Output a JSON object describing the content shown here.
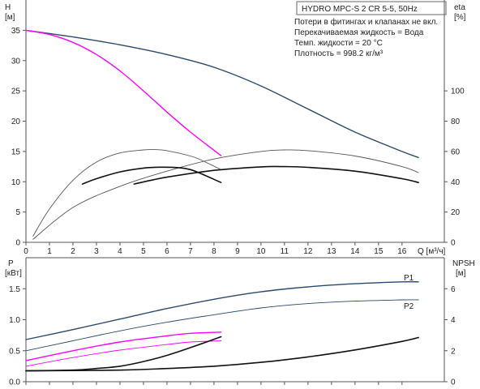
{
  "chart_data": [
    {
      "type": "line",
      "title": "HYDRO MPC-S 2 CR 5-5, 50Hz",
      "notes": [
        "Потери в фитингах и клапанах не вкл.",
        "Перекачиваемая жидкость = Вода",
        "Темп. жидкости = 20 °C",
        "Плотность = 998.2 кг/м³"
      ],
      "xlabel": "Q [м³/ч]",
      "xlim": [
        0,
        17.8
      ],
      "xticks": [
        0,
        1,
        2,
        3,
        4,
        5,
        6,
        7,
        8,
        9,
        10,
        11,
        12,
        13,
        14,
        15,
        16
      ],
      "ylabel_left": {
        "symbol": "H",
        "unit": "[м]"
      },
      "ylim_left": [
        0,
        40
      ],
      "yticks_left": [
        0,
        5,
        10,
        15,
        20,
        25,
        30,
        35
      ],
      "ylabel_right": {
        "symbol": "eta",
        "unit": "[%]"
      },
      "ylim_right": [
        0,
        160
      ],
      "yticks_right": [
        0,
        20,
        40,
        60,
        80,
        100
      ],
      "grid": false,
      "series": [
        {
          "axis": "left",
          "color": "#2a4a6e",
          "width": 1.4,
          "x": [
            0,
            2,
            4,
            6,
            8,
            10,
            12,
            14,
            16,
            16.7
          ],
          "y": [
            35,
            33.9,
            32.6,
            31,
            28.9,
            25.8,
            22,
            18.2,
            15,
            14
          ]
        },
        {
          "axis": "left",
          "color": "#ff00ff",
          "width": 1.4,
          "x": [
            0,
            1,
            2,
            3,
            4,
            5,
            6,
            7,
            8,
            8.3
          ],
          "y": [
            35,
            34.3,
            33,
            31,
            28.3,
            25,
            21.5,
            18.2,
            15.2,
            14.3
          ]
        },
        {
          "axis": "right",
          "color": "#555555",
          "width": 0.9,
          "x": [
            0.3,
            1,
            2,
            3,
            4,
            5,
            5.5,
            6,
            7,
            7.5,
            8.3
          ],
          "y": [
            4,
            22,
            41,
            53,
            59,
            61,
            61.2,
            60.5,
            57,
            54,
            48
          ]
        },
        {
          "axis": "right",
          "color": "#555555",
          "width": 0.9,
          "x": [
            0.3,
            2,
            4,
            6,
            8,
            10,
            11,
            12,
            14,
            16,
            16.7
          ],
          "y": [
            2,
            23,
            37,
            47,
            55,
            60,
            61,
            60.5,
            57,
            50,
            46
          ]
        },
        {
          "axis": "right",
          "color": "#111111",
          "width": 1.6,
          "x": [
            2.4,
            3,
            4,
            5,
            5.7,
            6.5,
            7,
            7.5,
            8.3
          ],
          "y": [
            38.5,
            42,
            46.5,
            49,
            49.6,
            49.3,
            48,
            45,
            39.5
          ]
        },
        {
          "axis": "right",
          "color": "#111111",
          "width": 1.6,
          "x": [
            4.6,
            6,
            8,
            10,
            11,
            12,
            14,
            16,
            16.7
          ],
          "y": [
            38.5,
            43,
            47.5,
            49.8,
            50,
            49.5,
            47,
            42,
            39.5
          ]
        }
      ]
    },
    {
      "type": "line",
      "xlim": [
        0,
        17.8
      ],
      "ylabel_left": {
        "symbol": "P",
        "unit": "[кВт]"
      },
      "ylim_left": [
        0,
        2
      ],
      "yticks_left": [
        "0.0",
        "0.5",
        "1.0",
        "1.5"
      ],
      "ylabel_right": {
        "symbol": "NPSH",
        "unit": "[м]"
      },
      "ylim_right": [
        0,
        8
      ],
      "yticks_right": [
        0,
        2,
        4,
        6
      ],
      "grid": false,
      "series": [
        {
          "name": "P1",
          "axis": "left",
          "color": "#2a4a6e",
          "width": 1.4,
          "x": [
            0,
            2,
            4,
            6,
            8,
            10,
            12,
            14,
            16,
            16.7
          ],
          "y": [
            0.68,
            0.84,
            1.01,
            1.18,
            1.33,
            1.45,
            1.53,
            1.58,
            1.61,
            1.61
          ]
        },
        {
          "name": "P2",
          "axis": "left",
          "color": "#2a4a6e",
          "width": 0.9,
          "x": [
            0,
            2,
            4,
            6,
            8,
            10,
            12,
            14,
            16,
            16.7
          ],
          "y": [
            0.5,
            0.66,
            0.82,
            0.96,
            1.08,
            1.19,
            1.26,
            1.3,
            1.32,
            1.32
          ]
        },
        {
          "axis": "left",
          "color": "#ff00ff",
          "width": 1.4,
          "x": [
            0,
            2,
            4,
            6,
            7,
            8.3
          ],
          "y": [
            0.34,
            0.5,
            0.64,
            0.74,
            0.78,
            0.8
          ]
        },
        {
          "axis": "left",
          "color": "#ff00ff",
          "width": 0.9,
          "x": [
            0,
            2,
            4,
            6,
            7,
            8.3
          ],
          "y": [
            0.25,
            0.39,
            0.51,
            0.6,
            0.64,
            0.66
          ]
        },
        {
          "axis": "right",
          "color": "#111111",
          "width": 1.6,
          "x": [
            0,
            2,
            3,
            4,
            5,
            6,
            7,
            8.3
          ],
          "y": [
            0.7,
            0.75,
            0.85,
            1,
            1.3,
            1.7,
            2.2,
            2.9
          ]
        },
        {
          "axis": "right",
          "color": "#111111",
          "width": 1.6,
          "x": [
            0,
            4,
            6,
            8,
            10,
            12,
            14,
            16,
            16.7
          ],
          "y": [
            0.7,
            0.75,
            0.85,
            1,
            1.25,
            1.6,
            2.05,
            2.6,
            2.85
          ]
        }
      ]
    }
  ]
}
